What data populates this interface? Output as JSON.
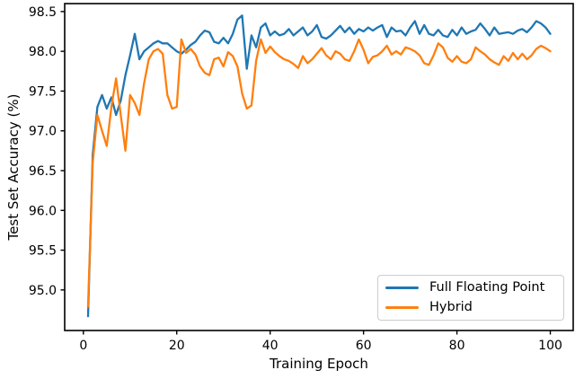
{
  "chart_data": {
    "type": "line",
    "title": "",
    "xlabel": "Training Epoch",
    "ylabel": "Test Set Accuracy (%)",
    "grid": false,
    "legend_position": "lower right",
    "xlim": [
      -4.0,
      104.9
    ],
    "ylim": [
      94.49,
      98.6
    ],
    "x_ticks": [
      0,
      20,
      40,
      60,
      80,
      100
    ],
    "x_tick_labels": [
      "0",
      "20",
      "40",
      "60",
      "80",
      "100"
    ],
    "y_ticks": [
      95.0,
      95.5,
      96.0,
      96.5,
      97.0,
      97.5,
      98.0,
      98.5
    ],
    "y_tick_labels": [
      "95.0",
      "95.5",
      "96.0",
      "96.5",
      "97.0",
      "97.5",
      "98.0",
      "98.5"
    ],
    "x": [
      1,
      2,
      3,
      4,
      5,
      6,
      7,
      8,
      9,
      10,
      11,
      12,
      13,
      14,
      15,
      16,
      17,
      18,
      19,
      20,
      21,
      22,
      23,
      24,
      25,
      26,
      27,
      28,
      29,
      30,
      31,
      32,
      33,
      34,
      35,
      36,
      37,
      38,
      39,
      40,
      41,
      42,
      43,
      44,
      45,
      46,
      47,
      48,
      49,
      50,
      51,
      52,
      53,
      54,
      55,
      56,
      57,
      58,
      59,
      60,
      61,
      62,
      63,
      64,
      65,
      66,
      67,
      68,
      69,
      70,
      71,
      72,
      73,
      74,
      75,
      76,
      77,
      78,
      79,
      80,
      81,
      82,
      83,
      84,
      85,
      86,
      87,
      88,
      89,
      90,
      91,
      92,
      93,
      94,
      95,
      96,
      97,
      98,
      99,
      100
    ],
    "series": [
      {
        "name": "Full Floating Point",
        "color": "#1f77b4",
        "values": [
          94.67,
          96.7,
          97.3,
          97.45,
          97.28,
          97.42,
          97.2,
          97.38,
          97.7,
          97.95,
          98.22,
          97.9,
          98.0,
          98.05,
          98.1,
          98.13,
          98.1,
          98.1,
          98.05,
          98.0,
          97.97,
          98.02,
          98.08,
          98.12,
          98.2,
          98.26,
          98.24,
          98.12,
          98.1,
          98.17,
          98.1,
          98.22,
          98.4,
          98.45,
          97.78,
          98.2,
          98.05,
          98.3,
          98.35,
          98.2,
          98.25,
          98.2,
          98.22,
          98.28,
          98.2,
          98.25,
          98.3,
          98.2,
          98.25,
          98.33,
          98.18,
          98.16,
          98.2,
          98.26,
          98.32,
          98.24,
          98.3,
          98.22,
          98.28,
          98.25,
          98.3,
          98.26,
          98.3,
          98.33,
          98.18,
          98.3,
          98.25,
          98.26,
          98.2,
          98.3,
          98.38,
          98.22,
          98.33,
          98.22,
          98.2,
          98.27,
          98.2,
          98.18,
          98.27,
          98.2,
          98.3,
          98.22,
          98.25,
          98.27,
          98.35,
          98.28,
          98.2,
          98.3,
          98.22,
          98.23,
          98.24,
          98.22,
          98.26,
          98.28,
          98.24,
          98.3,
          98.38,
          98.35,
          98.3,
          98.22
        ]
      },
      {
        "name": "Hybrid",
        "color": "#ff7f0e",
        "values": [
          94.79,
          96.6,
          97.2,
          97.0,
          96.81,
          97.3,
          97.66,
          97.2,
          96.75,
          97.45,
          97.35,
          97.2,
          97.6,
          97.9,
          98.0,
          98.03,
          97.97,
          97.45,
          97.28,
          97.3,
          98.15,
          97.98,
          98.03,
          97.96,
          97.81,
          97.73,
          97.7,
          97.9,
          97.92,
          97.81,
          97.99,
          97.94,
          97.81,
          97.47,
          97.28,
          97.32,
          97.88,
          98.15,
          97.98,
          98.06,
          97.99,
          97.94,
          97.9,
          97.88,
          97.84,
          97.79,
          97.94,
          97.85,
          97.9,
          97.97,
          98.04,
          97.95,
          97.9,
          98.0,
          97.97,
          97.9,
          97.88,
          98.0,
          98.15,
          98.02,
          97.85,
          97.93,
          97.95,
          98.0,
          98.07,
          97.96,
          98.0,
          97.96,
          98.05,
          98.03,
          98.0,
          97.95,
          97.85,
          97.83,
          97.95,
          98.1,
          98.05,
          97.92,
          97.87,
          97.94,
          97.87,
          97.85,
          97.9,
          98.05,
          98.0,
          97.96,
          97.9,
          97.86,
          97.83,
          97.94,
          97.88,
          97.98,
          97.9,
          97.97,
          97.9,
          97.95,
          98.03,
          98.07,
          98.04,
          98.0
        ]
      }
    ]
  }
}
